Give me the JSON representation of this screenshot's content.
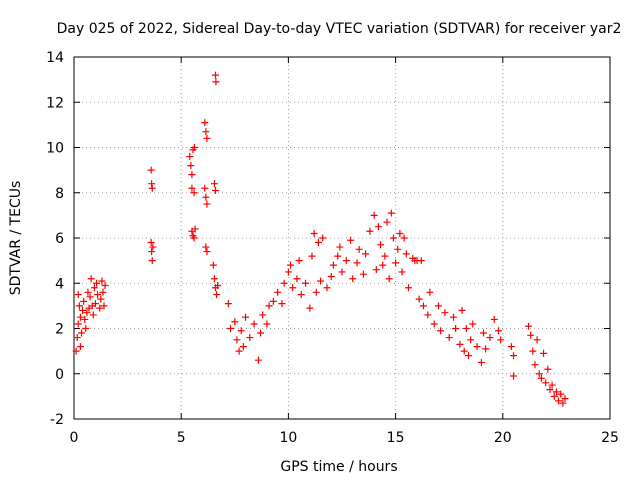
{
  "chart_data": {
    "type": "scatter",
    "title": "Day 025 of 2022, Sidereal Day-to-day VTEC variation (SDTVAR) for receiver yar2",
    "xlabel": "GPS time / hours",
    "ylabel": "SDTVAR / TECUs",
    "xlim": [
      0,
      25
    ],
    "ylim": [
      -2,
      14
    ],
    "x_ticks": [
      "0",
      "5",
      "10",
      "15",
      "20",
      "25"
    ],
    "y_ticks": [
      "-2",
      "0",
      "2",
      "4",
      "6",
      "8",
      "10",
      "12",
      "14"
    ],
    "grid": true,
    "marker": "+",
    "series_color": "#ff0000",
    "series": [
      {
        "name": "SDTVAR",
        "points": [
          [
            0.1,
            1.0
          ],
          [
            0.15,
            1.6
          ],
          [
            0.2,
            2.2
          ],
          [
            0.2,
            3.5
          ],
          [
            0.25,
            3.0
          ],
          [
            0.3,
            2.5
          ],
          [
            0.3,
            1.2
          ],
          [
            0.35,
            1.8
          ],
          [
            0.4,
            2.8
          ],
          [
            0.45,
            3.2
          ],
          [
            0.5,
            2.4
          ],
          [
            0.55,
            2.0
          ],
          [
            0.6,
            2.7
          ],
          [
            0.65,
            3.6
          ],
          [
            0.7,
            2.9
          ],
          [
            0.75,
            3.4
          ],
          [
            0.8,
            4.2
          ],
          [
            0.85,
            3.0
          ],
          [
            0.9,
            2.6
          ],
          [
            0.95,
            3.8
          ],
          [
            1.0,
            3.1
          ],
          [
            1.05,
            4.0
          ],
          [
            1.1,
            3.5
          ],
          [
            1.2,
            2.9
          ],
          [
            1.25,
            3.3
          ],
          [
            1.3,
            4.1
          ],
          [
            1.35,
            3.6
          ],
          [
            1.4,
            3.0
          ],
          [
            1.45,
            3.9
          ],
          [
            3.6,
            9.0
          ],
          [
            3.62,
            8.4
          ],
          [
            3.65,
            8.2
          ],
          [
            3.6,
            5.8
          ],
          [
            3.62,
            5.4
          ],
          [
            3.65,
            5.0
          ],
          [
            3.68,
            5.6
          ],
          [
            5.4,
            9.6
          ],
          [
            5.45,
            9.2
          ],
          [
            5.5,
            8.8
          ],
          [
            5.5,
            8.2
          ],
          [
            5.55,
            9.9
          ],
          [
            5.6,
            8.0
          ],
          [
            5.62,
            10.0
          ],
          [
            5.5,
            6.3
          ],
          [
            5.55,
            6.1
          ],
          [
            5.6,
            6.0
          ],
          [
            5.65,
            6.4
          ],
          [
            6.1,
            11.1
          ],
          [
            6.15,
            10.7
          ],
          [
            6.2,
            10.4
          ],
          [
            6.1,
            8.2
          ],
          [
            6.15,
            7.8
          ],
          [
            6.2,
            7.5
          ],
          [
            6.15,
            5.6
          ],
          [
            6.2,
            5.4
          ],
          [
            6.6,
            13.2
          ],
          [
            6.62,
            12.9
          ],
          [
            6.55,
            8.4
          ],
          [
            6.6,
            8.1
          ],
          [
            6.5,
            4.8
          ],
          [
            6.55,
            4.2
          ],
          [
            6.6,
            3.8
          ],
          [
            6.65,
            3.5
          ],
          [
            6.7,
            3.9
          ],
          [
            7.2,
            3.1
          ],
          [
            7.3,
            2.0
          ],
          [
            7.5,
            2.3
          ],
          [
            7.6,
            1.5
          ],
          [
            7.7,
            1.0
          ],
          [
            7.8,
            1.9
          ],
          [
            7.9,
            1.2
          ],
          [
            8.0,
            2.5
          ],
          [
            8.2,
            1.6
          ],
          [
            8.4,
            2.2
          ],
          [
            8.6,
            0.6
          ],
          [
            8.7,
            1.8
          ],
          [
            8.8,
            2.6
          ],
          [
            9.0,
            2.2
          ],
          [
            9.1,
            3.0
          ],
          [
            9.3,
            3.2
          ],
          [
            9.5,
            3.6
          ],
          [
            9.7,
            3.1
          ],
          [
            9.8,
            4.0
          ],
          [
            10.0,
            4.5
          ],
          [
            10.1,
            4.8
          ],
          [
            10.2,
            3.8
          ],
          [
            10.4,
            4.2
          ],
          [
            10.5,
            5.0
          ],
          [
            10.6,
            3.5
          ],
          [
            10.8,
            4.0
          ],
          [
            11.0,
            2.9
          ],
          [
            11.1,
            5.2
          ],
          [
            11.2,
            6.2
          ],
          [
            11.3,
            3.6
          ],
          [
            11.4,
            5.8
          ],
          [
            11.5,
            4.1
          ],
          [
            11.6,
            6.0
          ],
          [
            11.8,
            3.8
          ],
          [
            12.0,
            4.3
          ],
          [
            12.1,
            4.8
          ],
          [
            12.3,
            5.2
          ],
          [
            12.4,
            5.6
          ],
          [
            12.5,
            4.5
          ],
          [
            12.7,
            5.0
          ],
          [
            12.9,
            5.9
          ],
          [
            13.0,
            4.2
          ],
          [
            13.2,
            4.9
          ],
          [
            13.3,
            5.5
          ],
          [
            13.5,
            4.4
          ],
          [
            13.6,
            5.3
          ],
          [
            13.8,
            6.3
          ],
          [
            14.0,
            7.0
          ],
          [
            14.1,
            4.6
          ],
          [
            14.2,
            6.5
          ],
          [
            14.3,
            5.7
          ],
          [
            14.4,
            4.8
          ],
          [
            14.5,
            5.2
          ],
          [
            14.6,
            6.7
          ],
          [
            14.7,
            4.2
          ],
          [
            14.8,
            7.1
          ],
          [
            14.9,
            6.0
          ],
          [
            15.0,
            4.9
          ],
          [
            15.1,
            5.5
          ],
          [
            15.2,
            6.2
          ],
          [
            15.3,
            4.5
          ],
          [
            15.4,
            6.0
          ],
          [
            15.5,
            5.3
          ],
          [
            15.6,
            3.8
          ],
          [
            15.8,
            5.1
          ],
          [
            15.9,
            5.0
          ],
          [
            16.0,
            5.0
          ],
          [
            16.1,
            3.3
          ],
          [
            16.2,
            5.0
          ],
          [
            16.3,
            3.0
          ],
          [
            16.5,
            2.6
          ],
          [
            16.6,
            3.6
          ],
          [
            16.8,
            2.2
          ],
          [
            17.0,
            3.0
          ],
          [
            17.1,
            1.9
          ],
          [
            17.3,
            2.7
          ],
          [
            17.5,
            1.6
          ],
          [
            17.7,
            2.5
          ],
          [
            17.8,
            2.0
          ],
          [
            18.0,
            1.3
          ],
          [
            18.1,
            2.8
          ],
          [
            18.2,
            1.0
          ],
          [
            18.3,
            2.0
          ],
          [
            18.4,
            0.8
          ],
          [
            18.5,
            1.5
          ],
          [
            18.6,
            2.2
          ],
          [
            18.8,
            1.2
          ],
          [
            19.0,
            0.5
          ],
          [
            19.1,
            1.8
          ],
          [
            19.2,
            1.1
          ],
          [
            19.4,
            1.6
          ],
          [
            19.6,
            2.4
          ],
          [
            19.8,
            1.9
          ],
          [
            19.9,
            1.5
          ],
          [
            20.4,
            1.2
          ],
          [
            20.5,
            0.8
          ],
          [
            20.5,
            -0.1
          ],
          [
            21.2,
            2.1
          ],
          [
            21.3,
            1.7
          ],
          [
            21.4,
            1.0
          ],
          [
            21.5,
            0.4
          ],
          [
            21.6,
            1.5
          ],
          [
            21.7,
            0.0
          ],
          [
            21.8,
            -0.2
          ],
          [
            21.9,
            0.9
          ],
          [
            22.0,
            -0.4
          ],
          [
            22.1,
            0.2
          ],
          [
            22.2,
            -0.7
          ],
          [
            22.3,
            -0.5
          ],
          [
            22.4,
            -1.0
          ],
          [
            22.5,
            -0.8
          ],
          [
            22.6,
            -1.2
          ],
          [
            22.7,
            -0.9
          ],
          [
            22.8,
            -1.3
          ],
          [
            22.9,
            -1.1
          ]
        ]
      }
    ]
  }
}
